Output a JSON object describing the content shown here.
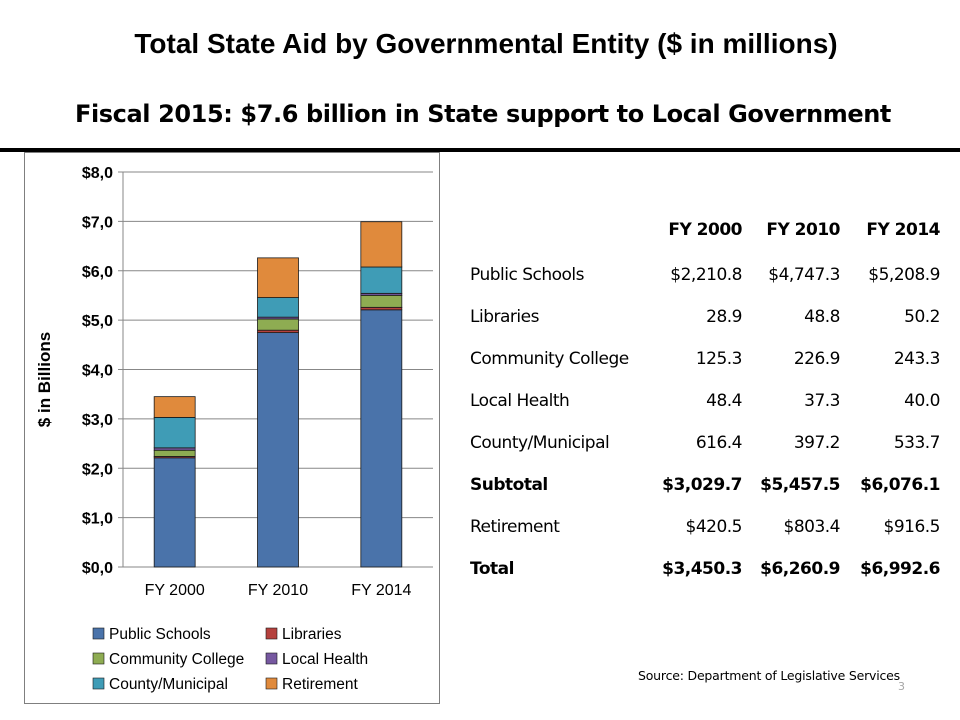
{
  "slide": {
    "title": "Total State Aid by Governmental Entity ($ in millions)",
    "subtitle": "Fiscal 2015:  $7.6 billion in State support to Local Government",
    "source": "Source: Department of Legislative Services",
    "page_number": "3"
  },
  "chart_data": {
    "type": "bar",
    "stacked": true,
    "ylabel": "$ in Billions",
    "ylim": [
      0,
      8
    ],
    "yticks": [
      "$0,0",
      "$1,0",
      "$2,0",
      "$3,0",
      "$4,0",
      "$5,0",
      "$6,0",
      "$7,0",
      "$8,0"
    ],
    "categories": [
      "FY 2000",
      "FY 2010",
      "FY 2014"
    ],
    "grid": true,
    "legend_position": "bottom",
    "series": [
      {
        "name": "Public Schools",
        "color": "#4a73aa",
        "values": [
          2.2108,
          4.7473,
          5.2089
        ]
      },
      {
        "name": "Libraries",
        "color": "#b5413d",
        "values": [
          0.0289,
          0.0488,
          0.0502
        ]
      },
      {
        "name": "Community College",
        "color": "#8eac52",
        "values": [
          0.1253,
          0.2269,
          0.2433
        ]
      },
      {
        "name": "Local Health",
        "color": "#7658a0",
        "values": [
          0.0484,
          0.0373,
          0.04
        ]
      },
      {
        "name": "County/Municipal",
        "color": "#3f9cb6",
        "values": [
          0.6164,
          0.3972,
          0.5337
        ]
      },
      {
        "name": "Retirement",
        "color": "#e08a3c",
        "values": [
          0.4205,
          0.8034,
          0.9165
        ]
      }
    ]
  },
  "table": {
    "headers": [
      "",
      "FY 2000",
      "FY 2010",
      "FY 2014"
    ],
    "rows": [
      {
        "label": "Public Schools",
        "values": [
          "$2,210.8",
          "$4,747.3",
          "$5,208.9"
        ],
        "bold": false
      },
      {
        "label": "Libraries",
        "values": [
          "28.9",
          "48.8",
          "50.2"
        ],
        "bold": false
      },
      {
        "label": "Community College",
        "values": [
          "125.3",
          "226.9",
          "243.3"
        ],
        "bold": false
      },
      {
        "label": "Local Health",
        "values": [
          "48.4",
          "37.3",
          "40.0"
        ],
        "bold": false
      },
      {
        "label": "County/Municipal",
        "values": [
          "616.4",
          "397.2",
          "533.7"
        ],
        "bold": false
      },
      {
        "label": "Subtotal",
        "values": [
          "$3,029.7",
          "$5,457.5",
          "$6,076.1"
        ],
        "bold": true
      },
      {
        "label": "Retirement",
        "values": [
          "$420.5",
          "$803.4",
          "$916.5"
        ],
        "bold": false
      },
      {
        "label": "Total",
        "values": [
          "$3,450.3",
          "$6,260.9",
          "$6,992.6"
        ],
        "bold": true
      }
    ]
  }
}
